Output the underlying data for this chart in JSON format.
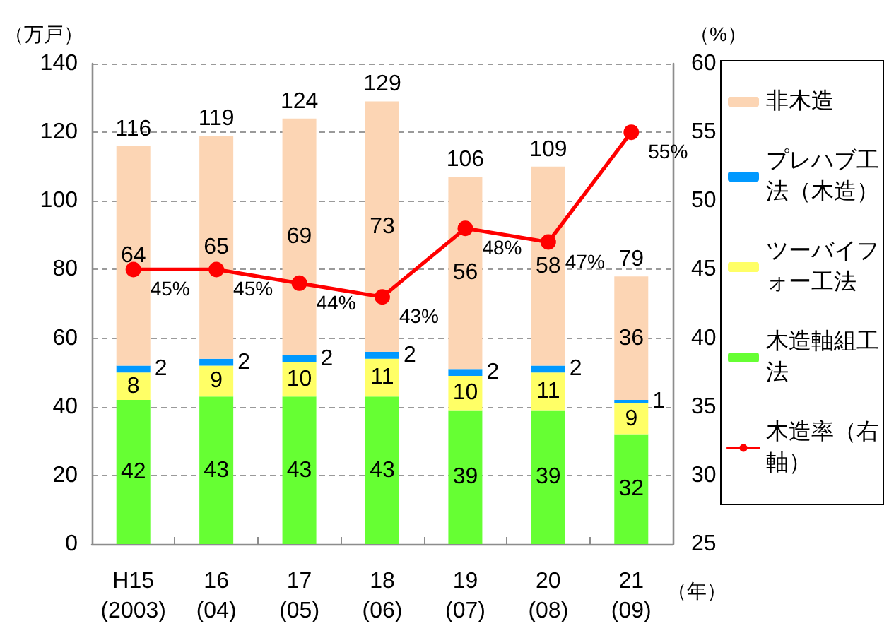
{
  "chart_data": {
    "type": "bar",
    "stacked": true,
    "categories": [
      "H15\n(2003)",
      "16\n(04)",
      "17\n(05)",
      "18\n(06)",
      "19\n(07)",
      "20\n(08)",
      "21\n(09)"
    ],
    "xlabel": "（年）",
    "ylabel": "（万戸）",
    "y2label": "（%）",
    "ylim": [
      0,
      140
    ],
    "yticks": [
      0,
      20,
      40,
      60,
      80,
      100,
      120,
      140
    ],
    "y2lim": [
      25,
      60
    ],
    "y2ticks": [
      25,
      30,
      35,
      40,
      45,
      50,
      55,
      60
    ],
    "grid": "y",
    "legend": "right",
    "data_labels": true,
    "marker": "circle",
    "totals": [
      "116",
      "119",
      "124",
      "129",
      "106",
      "109",
      "79"
    ],
    "series": [
      {
        "name": "木造軸組工法",
        "color": "#66ff33",
        "values": [
          42,
          43,
          43,
          43,
          39,
          39,
          32
        ]
      },
      {
        "name": "ツーバイフォー工法",
        "color": "#ffff66",
        "values": [
          8,
          9,
          10,
          11,
          10,
          11,
          9
        ]
      },
      {
        "name": "プレハブ工法（木造）",
        "color": "#0099ff",
        "values": [
          2,
          2,
          2,
          2,
          2,
          2,
          1
        ]
      },
      {
        "name": "非木造",
        "color": "#fcd5b4",
        "values": [
          64,
          65,
          69,
          73,
          56,
          58,
          36
        ]
      },
      {
        "name": "木造率（右軸）",
        "type": "line",
        "axis": "y2",
        "color": "#ff0000",
        "values": [
          45,
          45,
          44,
          43,
          48,
          47,
          55
        ],
        "value_labels": [
          "45%",
          "45%",
          "44%",
          "43%",
          "48%",
          "47%",
          "55%"
        ]
      }
    ]
  }
}
